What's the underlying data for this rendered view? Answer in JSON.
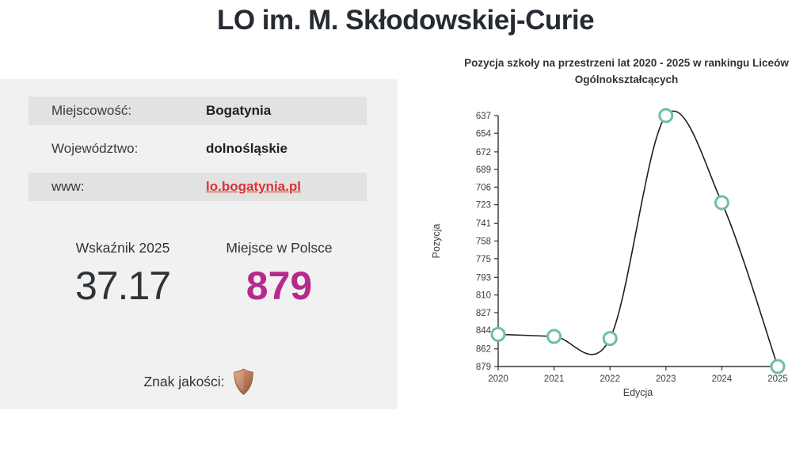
{
  "page": {
    "title": "LO im. M. Skłodowskiej-Curie"
  },
  "info_panel": {
    "rows": [
      {
        "label": "Miejscowość:",
        "value": "Bogatynia"
      },
      {
        "label": "Województwo:",
        "value": "dolnośląskie"
      },
      {
        "label": "www:",
        "value": "lo.bogatynia.pl"
      }
    ],
    "score": {
      "label": "Wskaźnik 2025",
      "value": "37.17"
    },
    "rank": {
      "label": "Miejsce w Polsce",
      "value": "879"
    },
    "quality": {
      "label": "Znak jakości:",
      "icon": "bronze-shield-icon"
    }
  },
  "chart_data": {
    "type": "line",
    "title": "Pozycja szkoły na przestrzeni lat 2020 - 2025 w rankingu Liceów Ogólnokształcących",
    "xlabel": "Edycja",
    "ylabel": "Pozycja",
    "x": [
      2020,
      2021,
      2022,
      2023,
      2024,
      2025
    ],
    "series": [
      {
        "name": "Pozycja",
        "values": [
          848,
          850,
          852,
          637,
          721,
          879
        ]
      }
    ],
    "ylim": [
      637,
      879
    ],
    "y_axis_inverted": true,
    "yticks": [
      637,
      654,
      672,
      689,
      706,
      723,
      741,
      758,
      775,
      793,
      810,
      827,
      844,
      862,
      879
    ],
    "grid": false,
    "legend": "none",
    "line_color": "#1f1f1f",
    "marker": {
      "shape": "circle",
      "fill": "#ffffff",
      "stroke": "#6cbfa7"
    }
  },
  "colors": {
    "heading_text": "#262b33",
    "panel_bg": "#f1f1f1",
    "row_bg": "#e2e2e2",
    "link_red": "#d93333",
    "rank_magenta": "#b7298c",
    "score_dark": "#2e3338",
    "marker_teal": "#6cbfa7",
    "shield_bronze": "#bf7d5e"
  }
}
